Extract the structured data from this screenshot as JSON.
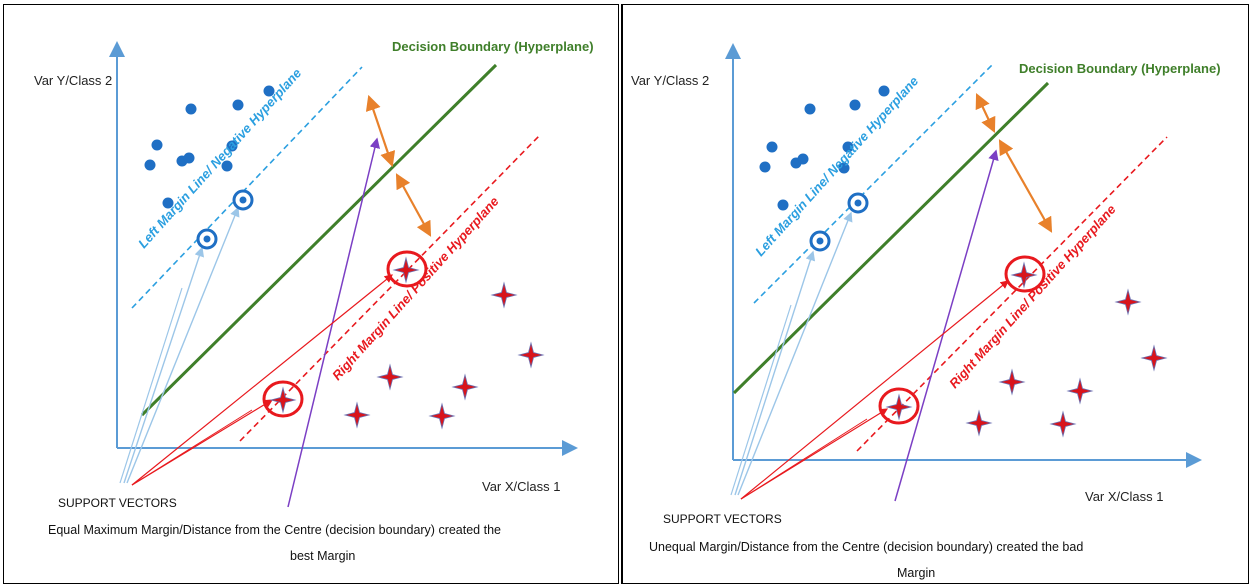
{
  "panels": [
    {
      "y_axis_label": "Var Y/Class 2",
      "x_axis_label": "Var X/Class 1",
      "decision_boundary_label": "Decision Boundary (Hyperplane)",
      "left_margin_label": "Left Margin Line/ Negative Hyperplane",
      "right_margin_label": "Right Margin Line/ Positive Hyperplane",
      "support_vectors_label": "SUPPORT VECTORS",
      "caption_line1": "Equal Maximum Margin/Distance from the Centre (decision boundary) created the",
      "caption_line2": "best Margin"
    },
    {
      "y_axis_label": "Var Y/Class 2",
      "x_axis_label": "Var X/Class 1",
      "decision_boundary_label": "Decision Boundary (Hyperplane)",
      "left_margin_label": "Left Margin Line/ Negative Hyperplane",
      "right_margin_label": "Right Margin Line/ Positive Hyperplane",
      "support_vectors_label": "SUPPORT VECTORS",
      "caption_line1": "Unequal Margin/Distance from the Centre (decision boundary) created the bad",
      "caption_line2": "Margin"
    }
  ],
  "colors": {
    "axis": "#5b9bd5",
    "decision_boundary": "#3f7f2a",
    "left_margin": "#2b9fe0",
    "right_margin": "#e8191e",
    "class2_dot": "#1f6fc4",
    "class1_star": "#d8141b",
    "margin_arrow": "#e8812b",
    "pointer_arrow": "#7b3fc4"
  },
  "icons": {
    "class2_point": "blue-dot-icon",
    "class1_point": "red-star-icon",
    "support_vector_marker": "circle-highlight-icon"
  }
}
